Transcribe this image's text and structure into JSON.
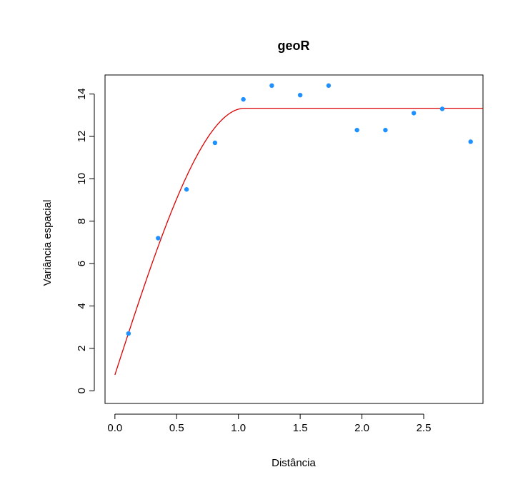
{
  "chart_data": {
    "type": "scatter",
    "title": "geoR",
    "xlabel": "Distância",
    "ylabel": "Variância espacial",
    "xlim": [
      -0.08,
      2.98
    ],
    "ylim": [
      -0.6,
      14.9
    ],
    "x_ticks": [
      0.0,
      0.5,
      1.0,
      1.5,
      2.0,
      2.5
    ],
    "x_tick_labels": [
      "0.0",
      "0.5",
      "1.0",
      "1.5",
      "2.0",
      "2.5"
    ],
    "y_ticks": [
      0,
      2,
      4,
      6,
      8,
      10,
      12,
      14
    ],
    "y_tick_labels": [
      "0",
      "2",
      "4",
      "6",
      "8",
      "10",
      "12",
      "14"
    ],
    "grid": false,
    "series": [
      {
        "type": "scatter",
        "color": "#1E90FF",
        "x": [
          0.11,
          0.35,
          0.58,
          0.81,
          1.04,
          1.27,
          1.5,
          1.73,
          1.96,
          2.19,
          2.42,
          2.65,
          2.88
        ],
        "y": [
          2.7,
          7.2,
          9.5,
          11.7,
          13.75,
          14.4,
          13.95,
          14.4,
          12.3,
          12.3,
          13.1,
          13.3,
          11.75
        ]
      },
      {
        "type": "line",
        "model": "spherical",
        "color": "#DD0000",
        "nugget": 0.75,
        "sill": 13.33,
        "range": 1.05,
        "x_max": 2.98
      }
    ]
  }
}
